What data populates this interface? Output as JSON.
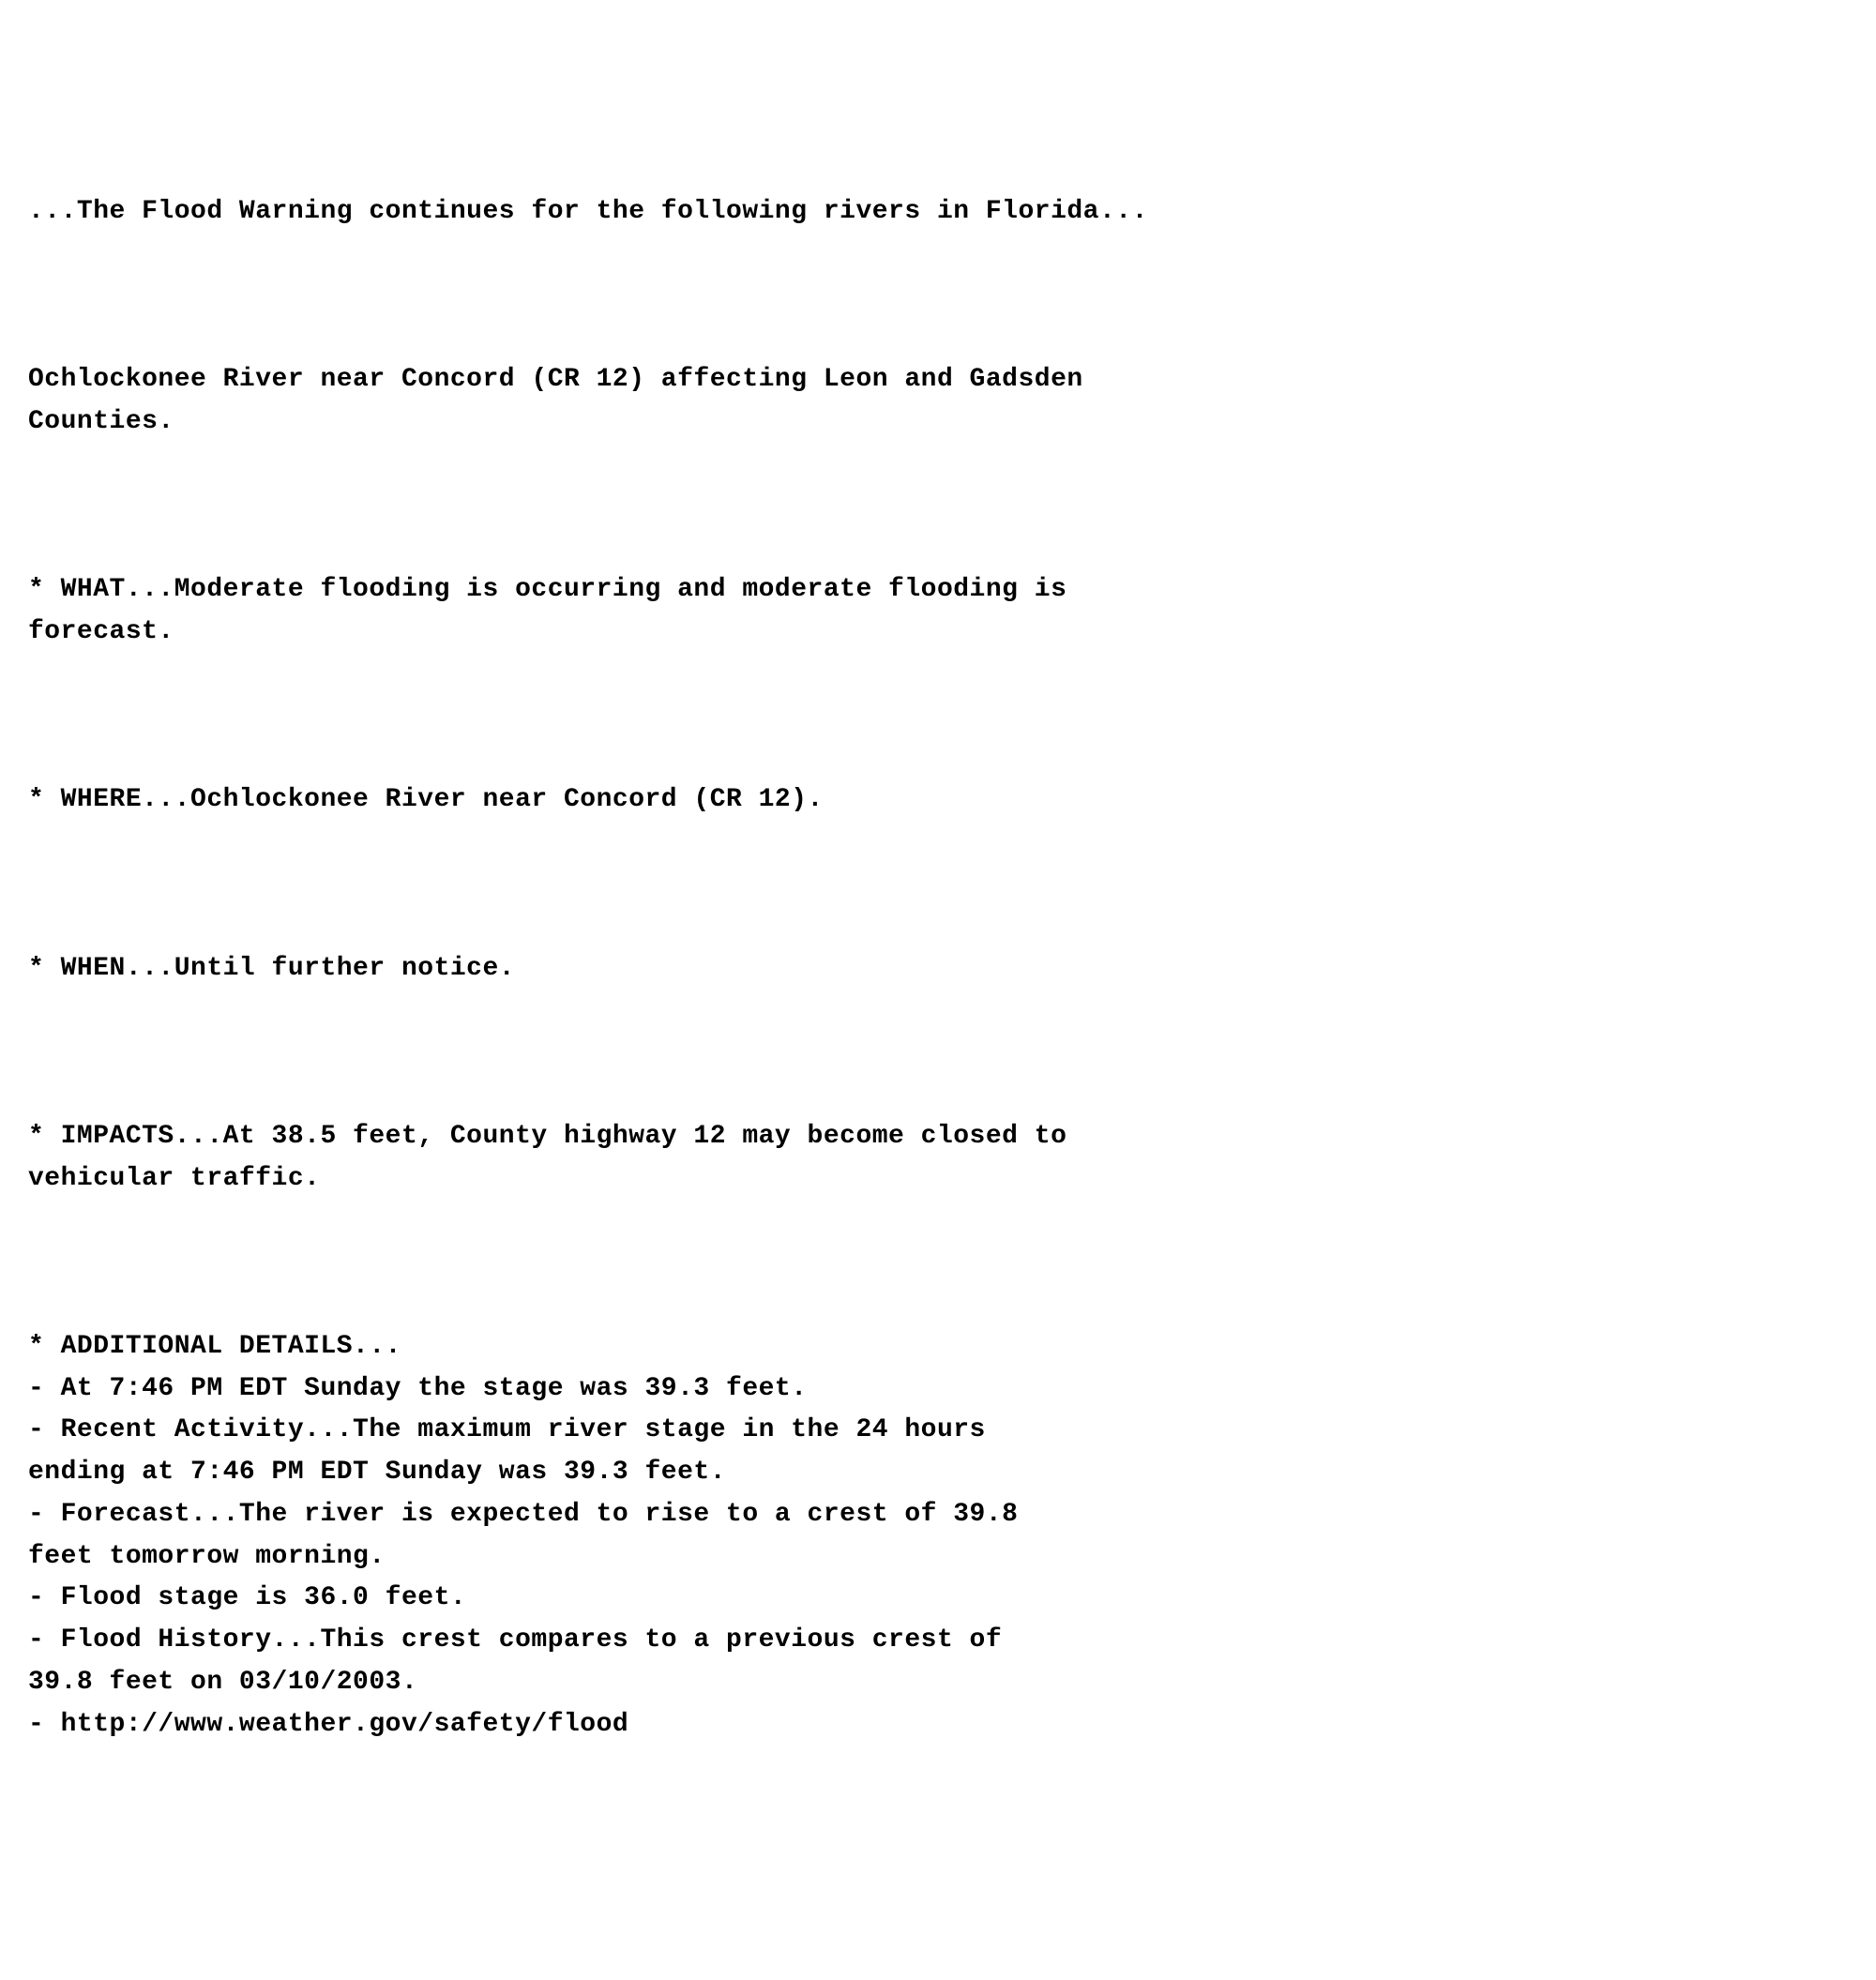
{
  "bulletin": {
    "header": "...The Flood Warning continues for the following rivers in Florida...",
    "location": "Ochlockonee River near Concord (CR 12) affecting Leon and Gadsden\nCounties.",
    "what": "* WHAT...Moderate flooding is occurring and moderate flooding is\nforecast.",
    "where": "* WHERE...Ochlockonee River near Concord (CR 12).",
    "when": "* WHEN...Until further notice.",
    "impacts": "* IMPACTS...At 38.5 feet, County highway 12 may become closed to\nvehicular traffic.",
    "additional": "* ADDITIONAL DETAILS...\n- At 7:46 PM EDT Sunday the stage was 39.3 feet.\n- Recent Activity...The maximum river stage in the 24 hours\nending at 7:46 PM EDT Sunday was 39.3 feet.\n- Forecast...The river is expected to rise to a crest of 39.8\nfeet tomorrow morning.\n- Flood stage is 36.0 feet.\n- Flood History...This crest compares to a previous crest of\n39.8 feet on 03/10/2003.\n- http://www.weather.gov/safety/flood"
  },
  "style": {
    "font_family": "Courier New, monospace",
    "font_size_pt": 21,
    "font_weight": "bold",
    "text_color": "#000000",
    "background_color": "#ffffff",
    "line_height": 1.6
  }
}
